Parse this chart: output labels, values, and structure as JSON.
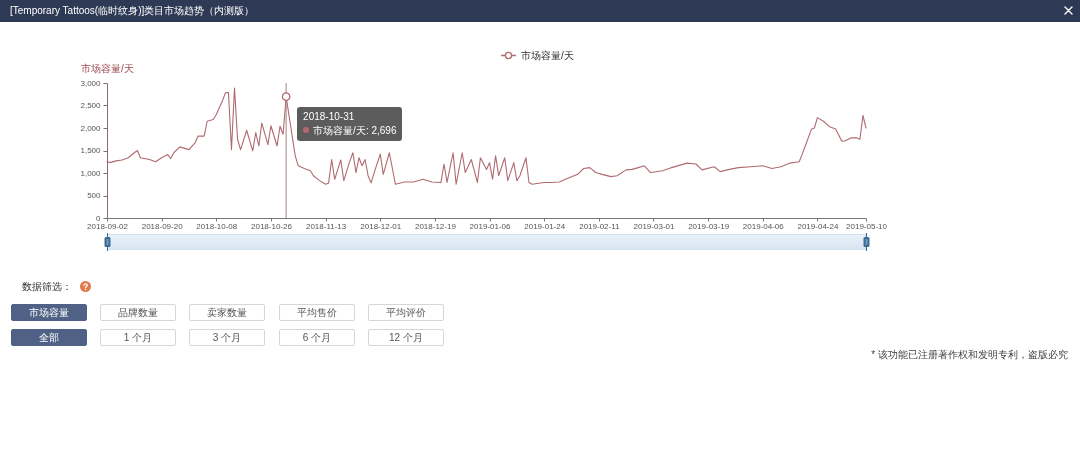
{
  "chart_data": {
    "type": "line",
    "title": "[Temporary Tattoos(临时纹身)]类目市场趋势（内测版）",
    "ylabel": "市场容量/天",
    "x": [
      "2018-09-02",
      "2018-09-03",
      "2018-09-05",
      "2018-09-07",
      "2018-09-09",
      "2018-09-11",
      "2018-09-12",
      "2018-09-13",
      "2018-09-16",
      "2018-09-18",
      "2018-09-20",
      "2018-09-22",
      "2018-09-23",
      "2018-09-24",
      "2018-09-26",
      "2018-09-29",
      "2018-10-01",
      "2018-10-02",
      "2018-10-04",
      "2018-10-05",
      "2018-10-07",
      "2018-10-08",
      "2018-10-10",
      "2018-10-11",
      "2018-10-12",
      "2018-10-13",
      "2018-10-14",
      "2018-10-15",
      "2018-10-16",
      "2018-10-18",
      "2018-10-20",
      "2018-10-21",
      "2018-10-22",
      "2018-10-23",
      "2018-10-25",
      "2018-10-26",
      "2018-10-28",
      "2018-10-29",
      "2018-10-30",
      "2018-10-31",
      "2018-11-02",
      "2018-11-03",
      "2018-11-04",
      "2018-11-06",
      "2018-11-08",
      "2018-11-09",
      "2018-11-11",
      "2018-11-13",
      "2018-11-14",
      "2018-11-15",
      "2018-11-16",
      "2018-11-18",
      "2018-11-19",
      "2018-11-21",
      "2018-11-22",
      "2018-11-23",
      "2018-11-24",
      "2018-11-25",
      "2018-11-26",
      "2018-11-27",
      "2018-11-28",
      "2018-11-29",
      "2018-12-01",
      "2018-12-02",
      "2018-12-04",
      "2018-12-06",
      "2018-12-09",
      "2018-12-12",
      "2018-12-15",
      "2018-12-18",
      "2018-12-21",
      "2018-12-22",
      "2018-12-23",
      "2018-12-25",
      "2018-12-26",
      "2018-12-28",
      "2018-12-29",
      "2018-12-31",
      "2019-01-02",
      "2019-01-03",
      "2019-01-05",
      "2019-01-06",
      "2019-01-07",
      "2019-01-08",
      "2019-01-09",
      "2019-01-11",
      "2019-01-12",
      "2019-01-14",
      "2019-01-15",
      "2019-01-16",
      "2019-01-18",
      "2019-01-19",
      "2019-01-20",
      "2019-01-24",
      "2019-01-26",
      "2019-01-29",
      "2019-01-31",
      "2019-02-04",
      "2019-02-06",
      "2019-02-08",
      "2019-02-10",
      "2019-02-12",
      "2019-02-15",
      "2019-02-17",
      "2019-02-20",
      "2019-02-22",
      "2019-02-24",
      "2019-02-26",
      "2019-02-28",
      "2019-03-04",
      "2019-03-07",
      "2019-03-12",
      "2019-03-15",
      "2019-03-17",
      "2019-03-21",
      "2019-03-23",
      "2019-03-26",
      "2019-03-29",
      "2019-04-02",
      "2019-04-06",
      "2019-04-09",
      "2019-04-12",
      "2019-04-15",
      "2019-04-18",
      "2019-04-19",
      "2019-04-20",
      "2019-04-22",
      "2019-04-23",
      "2019-04-24",
      "2019-04-26",
      "2019-04-28",
      "2019-04-30",
      "2019-05-02",
      "2019-05-03",
      "2019-05-05",
      "2019-05-07",
      "2019-05-08",
      "2019-05-09",
      "2019-05-10"
    ],
    "series": [
      {
        "name": "市场容量/天",
        "color": "#b06a70",
        "values": [
          1250,
          1230,
          1270,
          1290,
          1340,
          1450,
          1500,
          1340,
          1300,
          1250,
          1340,
          1410,
          1320,
          1450,
          1580,
          1520,
          1670,
          1820,
          1820,
          2150,
          2190,
          2300,
          2600,
          2780,
          2790,
          1520,
          2890,
          1750,
          1520,
          1950,
          1490,
          1900,
          1600,
          2110,
          1630,
          2050,
          1600,
          2040,
          1860,
          2696,
          1820,
          1380,
          1160,
          1100,
          1050,
          940,
          830,
          750,
          780,
          1300,
          860,
          1290,
          830,
          1270,
          1450,
          1010,
          1340,
          1160,
          1300,
          940,
          780,
          1010,
          1420,
          970,
          1450,
          750,
          800,
          800,
          860,
          800,
          790,
          1200,
          790,
          1450,
          750,
          1450,
          1010,
          1300,
          790,
          1340,
          1080,
          1230,
          860,
          1380,
          940,
          1340,
          830,
          1230,
          830,
          940,
          1340,
          790,
          750,
          790,
          790,
          800,
          860,
          970,
          1100,
          1120,
          1010,
          970,
          920,
          940,
          1070,
          1080,
          1120,
          1160,
          1010,
          1050,
          1120,
          1220,
          1200,
          1070,
          1140,
          1030,
          1080,
          1120,
          1140,
          1160,
          1100,
          1140,
          1220,
          1250,
          1420,
          1600,
          1970,
          2000,
          2230,
          2150,
          2030,
          1980,
          1710,
          1710,
          1780,
          1780,
          1750,
          2280,
          2000
        ]
      }
    ],
    "xlim": [
      "2018-09-02",
      "2019-05-10"
    ],
    "xticks": [
      "2018-09-02",
      "2018-09-20",
      "2018-10-08",
      "2018-10-26",
      "2018-11-13",
      "2018-12-01",
      "2018-12-19",
      "2019-01-06",
      "2019-01-24",
      "2019-02-11",
      "2019-03-01",
      "2019-03-19",
      "2019-04-06",
      "2019-04-24",
      "2019-05-10"
    ],
    "ylim": [
      0,
      3000
    ],
    "yticks": [
      0,
      500,
      {
        "value": 1000,
        "label": "1,000"
      },
      {
        "value": 1500,
        "label": "1,500"
      },
      {
        "value": 2000,
        "label": "2,000"
      },
      {
        "value": 2500,
        "label": "2,500"
      },
      {
        "value": 3000,
        "label": "3,000"
      }
    ],
    "legend": "top",
    "ref_lines": [
      {
        "axis": "x",
        "value": "2018-10-31",
        "color": "#a08284"
      }
    ],
    "annotations": [
      {
        "text": "2018-10-31",
        "x": "2018-10-31",
        "y": 2696
      },
      "市场容量/天: 2,696",
      "数据筛选：",
      "市场容量",
      "品牌数量",
      "卖家数量",
      "平均售价",
      "平均评价",
      "全部",
      "1 个月",
      "3 个月",
      "6 个月",
      "12 个月",
      "* 该功能已注册著作权和发明专利，盗版必究"
    ]
  }
}
